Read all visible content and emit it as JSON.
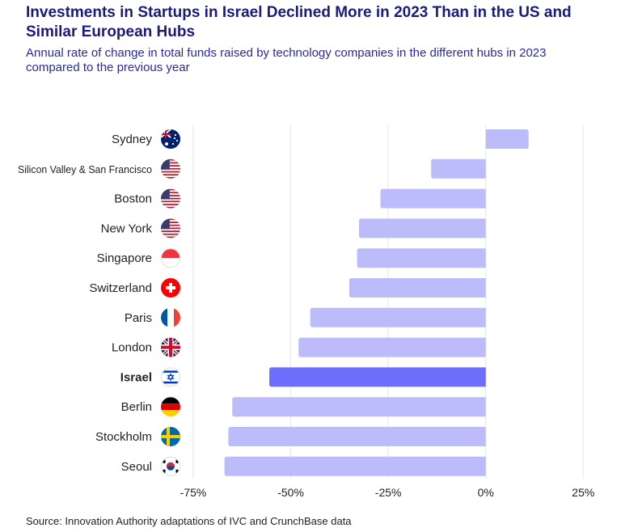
{
  "title": "Investments in Startups in Israel Declined More in 2023 Than in the US and Similar European Hubs",
  "subtitle": "Annual rate of change in total funds raised by technology companies in the different hubs in 2023 compared to the previous year",
  "source": "Source: Innovation Authority adaptations of IVC and CrunchBase data",
  "colors": {
    "bar": "#bcbcfb",
    "highlight": "#6e6efc",
    "grid": "#e6e6e6",
    "title": "#1a1a80"
  },
  "chart_data": {
    "type": "bar",
    "orientation": "horizontal",
    "categories": [
      "Sydney",
      "Silicon Valley & San Francisco",
      "Boston",
      "New York",
      "Singapore",
      "Switzerland",
      "Paris",
      "London",
      "Israel",
      "Berlin",
      "Stockholm",
      "Seoul"
    ],
    "flags": [
      "australia-flag",
      "usa-flag",
      "usa-flag",
      "usa-flag",
      "singapore-flag",
      "switzerland-flag",
      "france-flag",
      "uk-flag",
      "israel-flag",
      "germany-flag",
      "sweden-flag",
      "south-korea-flag"
    ],
    "values": [
      11,
      -14,
      -27,
      -32.5,
      -33,
      -35,
      -45,
      -48,
      -55.5,
      -65,
      -66,
      -67
    ],
    "highlight": "Israel",
    "xlim": [
      -75,
      25
    ],
    "xticks": [
      -75,
      -50,
      -25,
      0,
      25
    ],
    "xtick_labels": [
      "-75%",
      "-50%",
      "-25%",
      "0%",
      "25%"
    ],
    "grid": "vertical",
    "xlabel": "",
    "ylabel": ""
  }
}
